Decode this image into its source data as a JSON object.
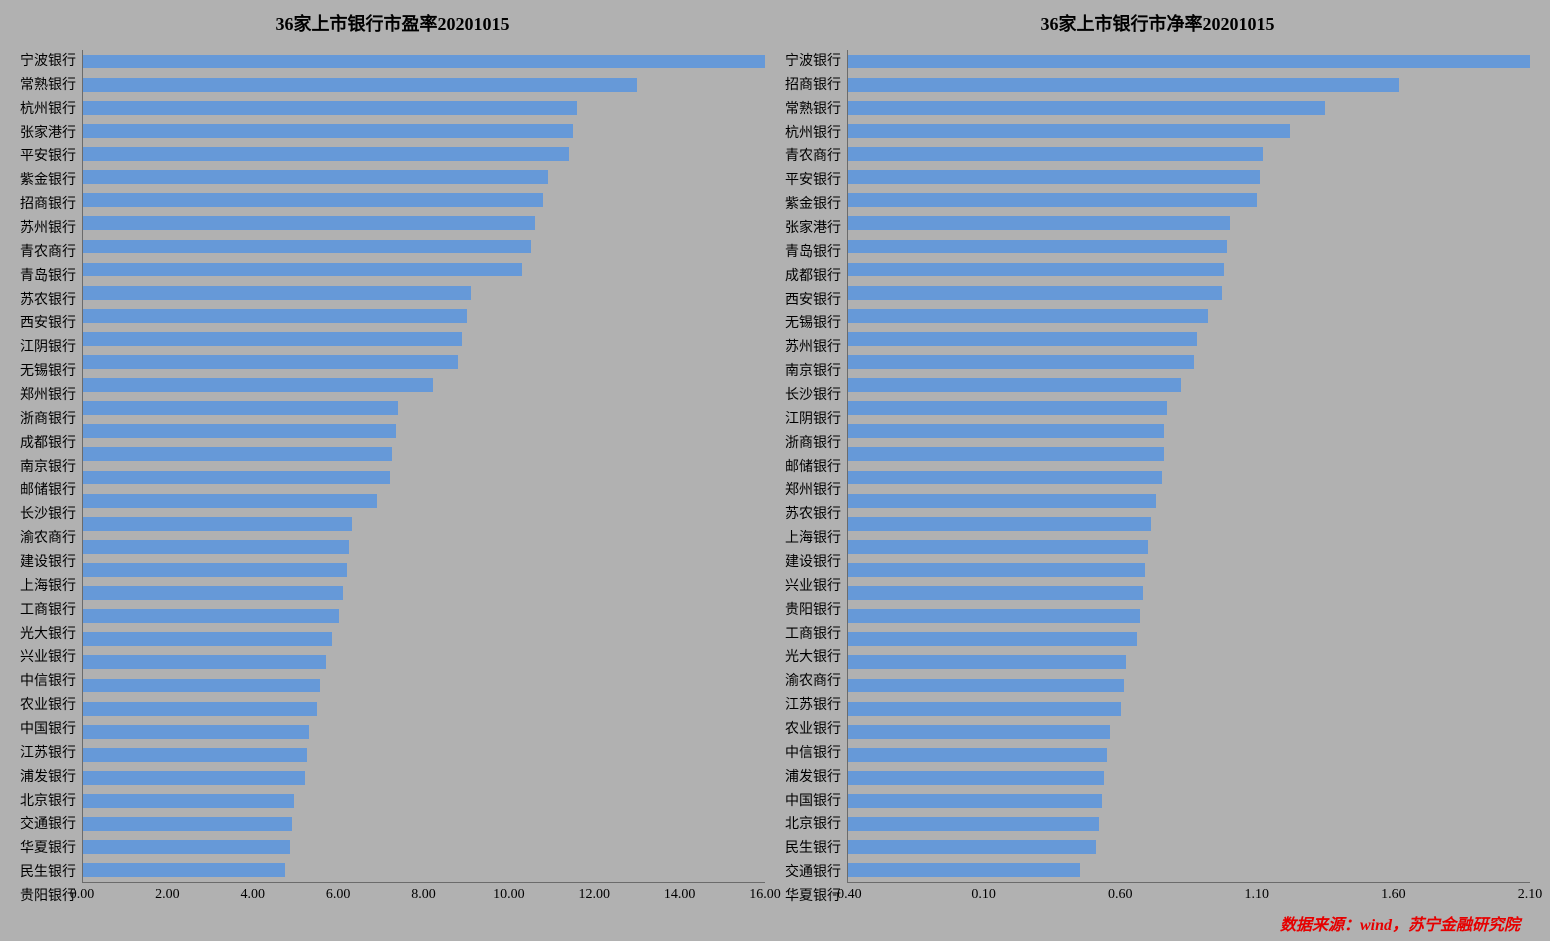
{
  "background_color": "#b1b1b1",
  "bar_color": "#6699d8",
  "axis_color": "#6b6b6b",
  "text_color": "#000000",
  "source_color": "#e60000",
  "title_fontsize_pt": 18,
  "label_fontsize_pt": 14,
  "tick_fontsize_pt": 14,
  "source_fontsize_pt": 16,
  "bar_fill_ratio": 0.6,
  "font_family": "SimSun",
  "source_text": "数据来源：wind，苏宁金融研究院",
  "left_chart": {
    "type": "bar-horizontal",
    "title": "36家上市银行市盈率20201015",
    "xlim": [
      0.0,
      16.0
    ],
    "xtick_step": 2.0,
    "xtick_decimals": 2,
    "data": [
      {
        "label": "宁波银行",
        "value": 16.0
      },
      {
        "label": "常熟银行",
        "value": 13.0
      },
      {
        "label": "杭州银行",
        "value": 11.6
      },
      {
        "label": "张家港行",
        "value": 11.5
      },
      {
        "label": "平安银行",
        "value": 11.4
      },
      {
        "label": "紫金银行",
        "value": 10.9
      },
      {
        "label": "招商银行",
        "value": 10.8
      },
      {
        "label": "苏州银行",
        "value": 10.6
      },
      {
        "label": "青农商行",
        "value": 10.5
      },
      {
        "label": "青岛银行",
        "value": 10.3
      },
      {
        "label": "苏农银行",
        "value": 9.1
      },
      {
        "label": "西安银行",
        "value": 9.0
      },
      {
        "label": "江阴银行",
        "value": 8.9
      },
      {
        "label": "无锡银行",
        "value": 8.8
      },
      {
        "label": "郑州银行",
        "value": 8.2
      },
      {
        "label": "浙商银行",
        "value": 7.4
      },
      {
        "label": "成都银行",
        "value": 7.35
      },
      {
        "label": "南京银行",
        "value": 7.25
      },
      {
        "label": "邮储银行",
        "value": 7.2
      },
      {
        "label": "长沙银行",
        "value": 6.9
      },
      {
        "label": "渝农商行",
        "value": 6.3
      },
      {
        "label": "建设银行",
        "value": 6.25
      },
      {
        "label": "上海银行",
        "value": 6.2
      },
      {
        "label": "工商银行",
        "value": 6.1
      },
      {
        "label": "光大银行",
        "value": 6.0
      },
      {
        "label": "兴业银行",
        "value": 5.85
      },
      {
        "label": "中信银行",
        "value": 5.7
      },
      {
        "label": "农业银行",
        "value": 5.55
      },
      {
        "label": "中国银行",
        "value": 5.5
      },
      {
        "label": "江苏银行",
        "value": 5.3
      },
      {
        "label": "浦发银行",
        "value": 5.25
      },
      {
        "label": "北京银行",
        "value": 5.2
      },
      {
        "label": "交通银行",
        "value": 4.95
      },
      {
        "label": "华夏银行",
        "value": 4.9
      },
      {
        "label": "民生银行",
        "value": 4.85
      },
      {
        "label": "贵阳银行",
        "value": 4.75
      }
    ]
  },
  "right_chart": {
    "type": "bar-horizontal",
    "title": "36家上市银行市净率20201015",
    "xlim": [
      -0.4,
      2.1
    ],
    "xtick_step": 0.5,
    "xtick_decimals": 2,
    "data": [
      {
        "label": "宁波银行",
        "value": 2.1
      },
      {
        "label": "招商银行",
        "value": 1.62
      },
      {
        "label": "常熟银行",
        "value": 1.35
      },
      {
        "label": "杭州银行",
        "value": 1.22
      },
      {
        "label": "青农商行",
        "value": 1.12
      },
      {
        "label": "平安银行",
        "value": 1.11
      },
      {
        "label": "紫金银行",
        "value": 1.1
      },
      {
        "label": "张家港行",
        "value": 1.0
      },
      {
        "label": "青岛银行",
        "value": 0.99
      },
      {
        "label": "成都银行",
        "value": 0.98
      },
      {
        "label": "西安银行",
        "value": 0.97
      },
      {
        "label": "无锡银行",
        "value": 0.92
      },
      {
        "label": "苏州银行",
        "value": 0.88
      },
      {
        "label": "南京银行",
        "value": 0.87
      },
      {
        "label": "长沙银行",
        "value": 0.82
      },
      {
        "label": "江阴银行",
        "value": 0.77
      },
      {
        "label": "浙商银行",
        "value": 0.76
      },
      {
        "label": "邮储银行",
        "value": 0.76
      },
      {
        "label": "郑州银行",
        "value": 0.75
      },
      {
        "label": "苏农银行",
        "value": 0.73
      },
      {
        "label": "上海银行",
        "value": 0.71
      },
      {
        "label": "建设银行",
        "value": 0.7
      },
      {
        "label": "兴业银行",
        "value": 0.69
      },
      {
        "label": "贵阳银行",
        "value": 0.68
      },
      {
        "label": "工商银行",
        "value": 0.67
      },
      {
        "label": "光大银行",
        "value": 0.66
      },
      {
        "label": "渝农商行",
        "value": 0.62
      },
      {
        "label": "江苏银行",
        "value": 0.61
      },
      {
        "label": "农业银行",
        "value": 0.6
      },
      {
        "label": "中信银行",
        "value": 0.56
      },
      {
        "label": "浦发银行",
        "value": 0.55
      },
      {
        "label": "中国银行",
        "value": 0.54
      },
      {
        "label": "北京银行",
        "value": 0.53
      },
      {
        "label": "民生银行",
        "value": 0.52
      },
      {
        "label": "交通银行",
        "value": 0.51
      },
      {
        "label": "华夏银行",
        "value": 0.45
      }
    ]
  }
}
